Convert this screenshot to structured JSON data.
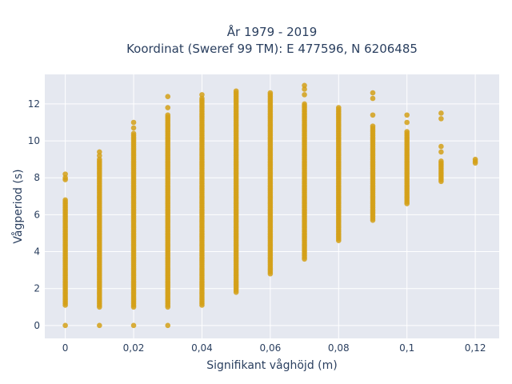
{
  "chart_data": {
    "type": "scatter",
    "title": "År 1979 - 2019",
    "subtitle": "Koordinat (Sweref 99 TM): E 477596, N 6206485",
    "xlabel": "Signifikant våghöjd (m)",
    "ylabel": "Vågperiod (s)",
    "xlim": [
      -0.006,
      0.127
    ],
    "ylim": [
      -0.7,
      13.6
    ],
    "x_ticks": [
      0,
      0.02,
      0.04,
      0.06,
      0.08,
      0.1,
      0.12
    ],
    "x_tick_labels": [
      "0",
      "0,02",
      "0,04",
      "0,06",
      "0,08",
      "0,1",
      "0,12"
    ],
    "y_ticks": [
      0,
      2,
      4,
      6,
      8,
      10,
      12
    ],
    "y_tick_labels": [
      "0",
      "2",
      "4",
      "6",
      "8",
      "10",
      "12"
    ],
    "grid": true,
    "marker_color": "#d4a017",
    "plot_bg": "#e5e8f0",
    "series": [
      {
        "columns": [
          {
            "x": 0,
            "y_min": 1.1,
            "y_max": 6.8,
            "extra_y": [
              0.0,
              7.9,
              8.0,
              8.2
            ]
          },
          {
            "x": 0.01,
            "y_min": 1.0,
            "y_max": 9.0,
            "extra_y": [
              0.0,
              9.2,
              9.4
            ]
          },
          {
            "x": 0.02,
            "y_min": 1.0,
            "y_max": 10.4,
            "extra_y": [
              0.0,
              10.7,
              11.0
            ]
          },
          {
            "x": 0.03,
            "y_min": 1.0,
            "y_max": 11.4,
            "extra_y": [
              0.0,
              11.8,
              12.4
            ]
          },
          {
            "x": 0.04,
            "y_min": 1.1,
            "y_max": 12.3,
            "extra_y": [
              12.5
            ]
          },
          {
            "x": 0.05,
            "y_min": 1.8,
            "y_max": 12.6,
            "extra_y": [
              12.7
            ]
          },
          {
            "x": 0.06,
            "y_min": 2.8,
            "y_max": 12.6,
            "extra_y": []
          },
          {
            "x": 0.07,
            "y_min": 3.6,
            "y_max": 12.0,
            "extra_y": [
              12.5,
              12.8,
              13.0
            ]
          },
          {
            "x": 0.08,
            "y_min": 4.6,
            "y_max": 11.8,
            "extra_y": []
          },
          {
            "x": 0.09,
            "y_min": 5.7,
            "y_max": 10.8,
            "extra_y": [
              11.4,
              12.3,
              12.6
            ]
          },
          {
            "x": 0.1,
            "y_min": 6.6,
            "y_max": 10.5,
            "extra_y": [
              11.0,
              11.4
            ]
          },
          {
            "x": 0.11,
            "y_min": 7.8,
            "y_max": 8.9,
            "extra_y": [
              9.4,
              9.7,
              11.2,
              11.5
            ]
          },
          {
            "x": 0.12,
            "y_min": 8.8,
            "y_max": 9.0,
            "extra_y": []
          }
        ]
      }
    ]
  }
}
